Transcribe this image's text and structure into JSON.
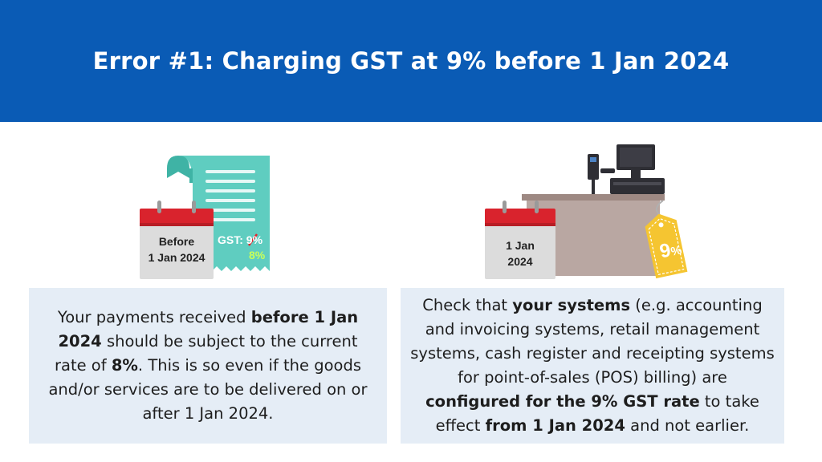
{
  "header": {
    "title": "Error #1: Charging GST at 9% before 1 Jan 2024"
  },
  "left": {
    "calendar_line1": "Before",
    "calendar_line2": "1 Jan 2024",
    "receipt_label": "GST: ",
    "receipt_old_rate": "9%",
    "receipt_new_rate": "8%",
    "text_parts": [
      "Your payments received ",
      "before 1 Jan 2024",
      " should be subject to the current rate of ",
      "8%",
      ". This is so even if the goods and/or services are to be delivered on or after 1 Jan 2024."
    ]
  },
  "right": {
    "calendar_line1": "1 Jan",
    "calendar_line2": "2024",
    "tag_number": "9",
    "tag_percent": "%",
    "text_parts": [
      "Check that ",
      "your systems",
      " (e.g. accounting and invoicing systems, retail management systems, cash register and receipting systems for point-of-sales (POS) billing) are ",
      "configured for the 9% GST rate",
      " to take effect ",
      "from 1 Jan 2024",
      " and not earlier."
    ]
  },
  "colors": {
    "header_bg": "#0a5bb5",
    "card_bg": "#e5edf6",
    "receipt": "#5fcdc0",
    "calendar_red": "#d9232d",
    "tag_yellow": "#f5c531",
    "new_rate_green": "#c8ff5a",
    "strike_red": "#e0262e"
  }
}
